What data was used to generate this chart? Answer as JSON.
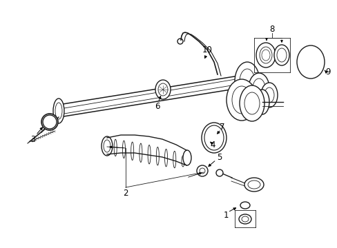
{
  "background_color": "#ffffff",
  "line_color": "#1a1a1a",
  "lw": 1.0,
  "tlw": 0.6,
  "fs": 8.5,
  "fig_w": 4.89,
  "fig_h": 3.6,
  "dpi": 100
}
